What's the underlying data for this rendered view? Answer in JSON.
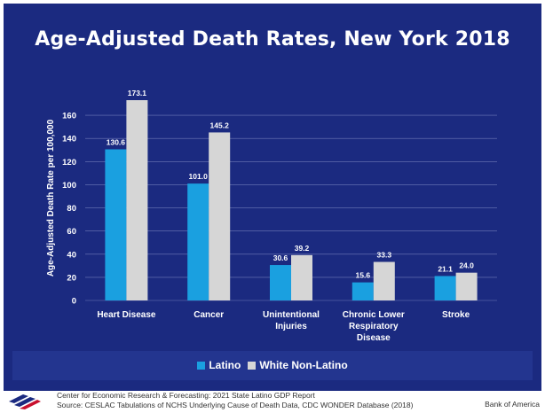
{
  "title": "Age-Adjusted Death Rates, New York 2018",
  "chart_data": {
    "type": "bar",
    "title": "Age-Adjusted Death Rates, New York 2018",
    "ylabel": "Age-Adjusted Death Rate per 100,000",
    "xlabel": "",
    "ylim": [
      0,
      180
    ],
    "yticks": [
      "0",
      "20",
      "40",
      "60",
      "80",
      "100",
      "120",
      "140",
      "160"
    ],
    "categories": [
      [
        "Heart Disease"
      ],
      [
        "Cancer"
      ],
      [
        "Unintentional",
        "Injuries"
      ],
      [
        "Chronic Lower",
        "Respiratory",
        "Disease"
      ],
      [
        "Stroke"
      ]
    ],
    "series": [
      {
        "name": "Latino",
        "color": "#1aa0e0",
        "values": [
          130.6,
          101.0,
          30.6,
          15.6,
          21.1
        ],
        "labels": [
          "130.6",
          "101.0",
          "30.6",
          "15.6",
          "21.1"
        ]
      },
      {
        "name": "White Non-Latino",
        "color": "#d6d6d6",
        "values": [
          173.1,
          145.2,
          39.2,
          33.3,
          24.0
        ],
        "labels": [
          "173.1",
          "145.2",
          "39.2",
          "33.3",
          "24.0"
        ]
      }
    ],
    "grid": true,
    "legend_position": "bottom"
  },
  "legend": {
    "latino": "Latino",
    "white": "White Non-Latino"
  },
  "footer": {
    "source_line1": "Center for Economic Research & Forecasting: 2021 State Latino GDP Report",
    "source_line2": "Source: CESLAC Tabulations of NCHS Underlying Cause of Death Data, CDC WONDER Database (2018)",
    "brand": "Bank of America",
    "logo_icon": "bank-of-america-flag-icon"
  },
  "colors": {
    "background": "#1b2a80",
    "latino": "#1aa0e0",
    "white_non_latino": "#d6d6d6"
  }
}
